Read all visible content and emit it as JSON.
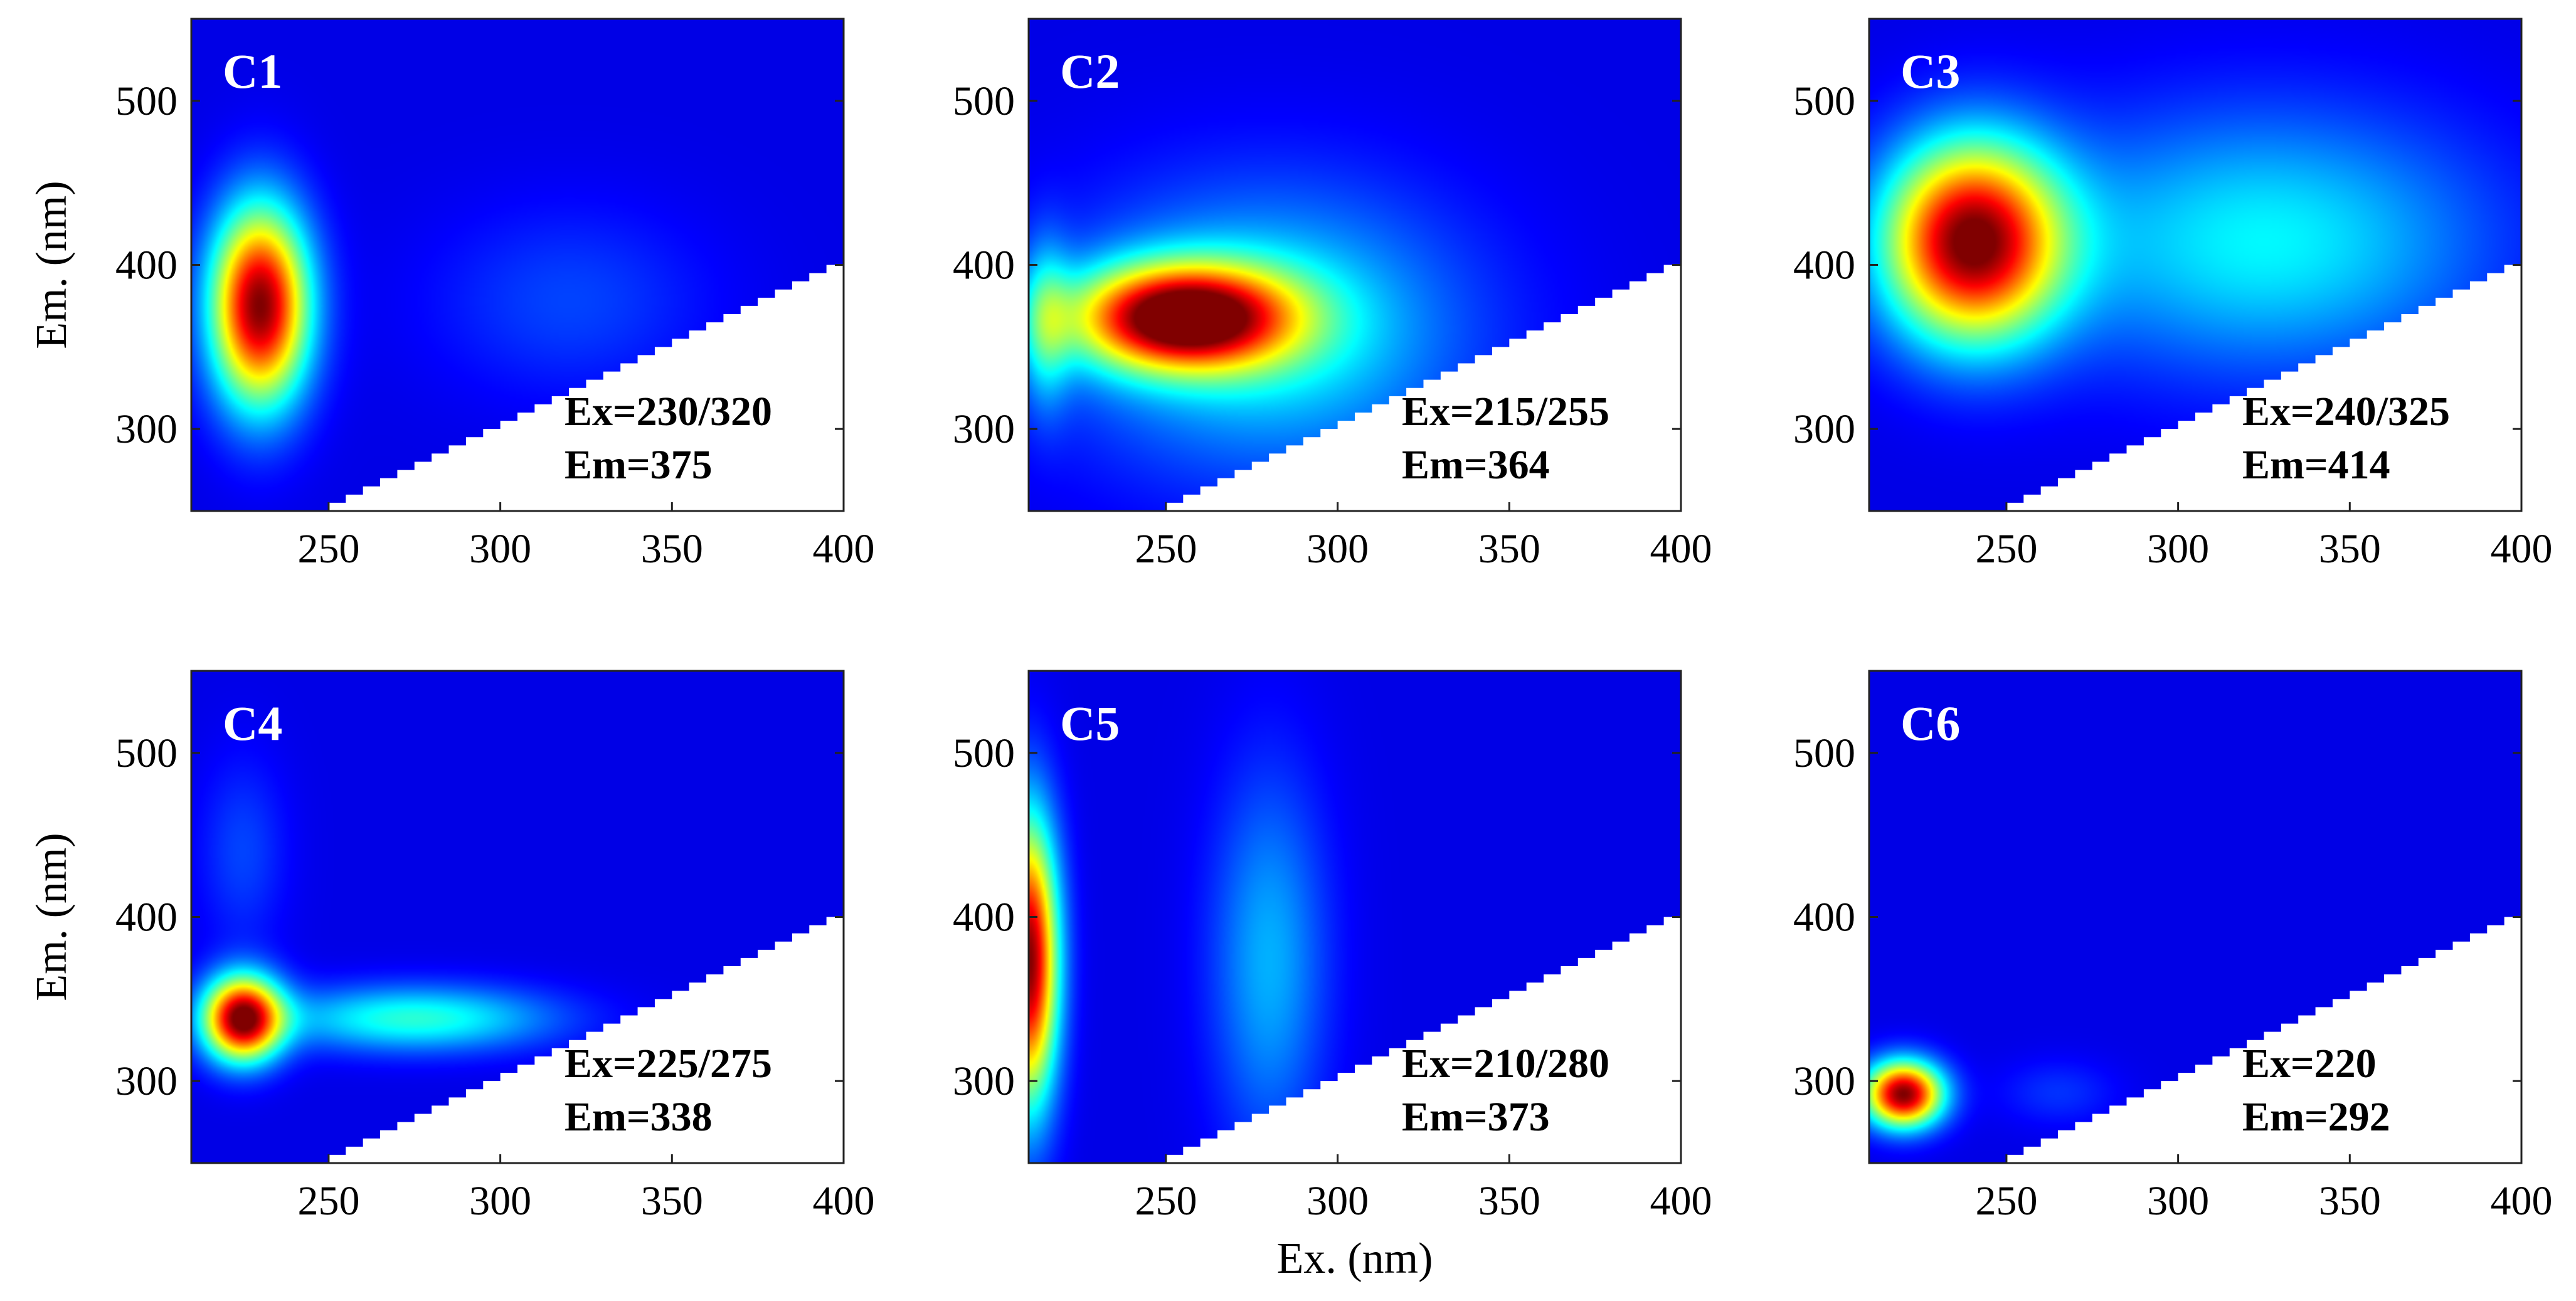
{
  "colors": {
    "background": "#00008f",
    "mask": "#ffffff",
    "colormap": "jet"
  },
  "chart_data": [
    {
      "type": "heatmap",
      "panel_label": "C1",
      "xlabel": "",
      "ylabel": "Em. (nm)",
      "xlim": [
        210,
        400
      ],
      "ylim": [
        250,
        550
      ],
      "xticks": [
        "250",
        "300",
        "350",
        "400"
      ],
      "yticks": [
        "300",
        "400",
        "500"
      ],
      "annotation": [
        "Ex=230/320",
        "Em=375"
      ],
      "peaks": [
        {
          "ex": 230,
          "em": 375,
          "intensity": 1.0,
          "sx": 10,
          "sy": 42
        },
        {
          "ex": 320,
          "em": 378,
          "intensity": 0.1,
          "sx": 28,
          "sy": 40
        }
      ]
    },
    {
      "type": "heatmap",
      "panel_label": "C2",
      "xlabel": "",
      "ylabel": "",
      "xlim": [
        210,
        400
      ],
      "ylim": [
        250,
        550
      ],
      "xticks": [
        "250",
        "300",
        "350",
        "400"
      ],
      "yticks": [
        "300",
        "400",
        "500"
      ],
      "annotation": [
        "Ex=215/255",
        "Em=364"
      ],
      "peaks": [
        {
          "ex": 255,
          "em": 368,
          "intensity": 1.0,
          "sx": 22,
          "sy": 22
        },
        {
          "ex": 280,
          "em": 360,
          "intensity": 0.3,
          "sx": 40,
          "sy": 60
        },
        {
          "ex": 215,
          "em": 364,
          "intensity": 0.25,
          "sx": 5,
          "sy": 35
        }
      ]
    },
    {
      "type": "heatmap",
      "panel_label": "C3",
      "xlabel": "",
      "ylabel": "",
      "xlim": [
        210,
        400
      ],
      "ylim": [
        250,
        550
      ],
      "xticks": [
        "250",
        "300",
        "350",
        "400"
      ],
      "yticks": [
        "300",
        "400",
        "500"
      ],
      "annotation": [
        "Ex=240/325",
        "Em=414"
      ],
      "peaks": [
        {
          "ex": 240,
          "em": 414,
          "intensity": 1.0,
          "sx": 18,
          "sy": 42
        },
        {
          "ex": 325,
          "em": 414,
          "intensity": 0.3,
          "sx": 45,
          "sy": 55
        }
      ]
    },
    {
      "type": "heatmap",
      "panel_label": "C4",
      "xlabel": "",
      "ylabel": "Em. (nm)",
      "xlim": [
        210,
        400
      ],
      "ylim": [
        250,
        550
      ],
      "xticks": [
        "250",
        "300",
        "350",
        "400"
      ],
      "yticks": [
        "300",
        "400",
        "500"
      ],
      "annotation": [
        "Ex=225/275",
        "Em=338"
      ],
      "peaks": [
        {
          "ex": 225,
          "em": 338,
          "intensity": 1.0,
          "sx": 8,
          "sy": 18
        },
        {
          "ex": 275,
          "em": 338,
          "intensity": 0.35,
          "sx": 28,
          "sy": 14
        },
        {
          "ex": 225,
          "em": 440,
          "intensity": 0.1,
          "sx": 9,
          "sy": 40
        }
      ]
    },
    {
      "type": "heatmap",
      "panel_label": "C5",
      "xlabel": "Ex. (nm)",
      "ylabel": "",
      "xlim": [
        210,
        400
      ],
      "ylim": [
        250,
        550
      ],
      "xticks": [
        "250",
        "300",
        "350",
        "400"
      ],
      "yticks": [
        "300",
        "400",
        "500"
      ],
      "annotation": [
        "Ex=210/280",
        "Em=373"
      ],
      "peaks": [
        {
          "ex": 210,
          "em": 373,
          "intensity": 1.0,
          "sx": 6,
          "sy": 60
        },
        {
          "ex": 280,
          "em": 373,
          "intensity": 0.22,
          "sx": 12,
          "sy": 80
        }
      ]
    },
    {
      "type": "heatmap",
      "panel_label": "C6",
      "xlabel": "",
      "ylabel": "",
      "xlim": [
        210,
        400
      ],
      "ylim": [
        250,
        550
      ],
      "xticks": [
        "250",
        "300",
        "350",
        "400"
      ],
      "yticks": [
        "300",
        "400",
        "500"
      ],
      "annotation": [
        "Ex=220",
        "Em=292"
      ],
      "peaks": [
        {
          "ex": 220,
          "em": 292,
          "intensity": 1.0,
          "sx": 8,
          "sy": 14
        },
        {
          "ex": 265,
          "em": 293,
          "intensity": 0.08,
          "sx": 12,
          "sy": 14
        }
      ]
    }
  ]
}
